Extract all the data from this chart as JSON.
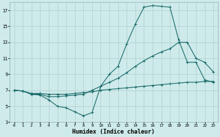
{
  "xlabel": "Humidex (Indice chaleur)",
  "bg_color": "#ceeaea",
  "line_color": "#1a6b6b",
  "grid_color": "#aed0d0",
  "xlim": [
    -0.5,
    23.5
  ],
  "ylim": [
    3,
    18
  ],
  "xticks": [
    0,
    1,
    2,
    3,
    4,
    5,
    6,
    7,
    8,
    9,
    10,
    11,
    12,
    13,
    14,
    15,
    16,
    17,
    18,
    19,
    20,
    21,
    22,
    23
  ],
  "yticks": [
    3,
    5,
    7,
    9,
    11,
    13,
    15,
    17
  ],
  "line1_x": [
    0,
    1,
    2,
    3,
    4,
    5,
    6,
    7,
    8,
    9,
    10,
    11,
    12,
    13,
    14,
    15,
    16,
    17,
    18,
    19,
    20,
    21,
    22,
    23
  ],
  "line1_y": [
    7.0,
    6.9,
    6.6,
    6.6,
    6.5,
    6.5,
    6.5,
    6.6,
    6.7,
    6.8,
    7.0,
    7.1,
    7.2,
    7.3,
    7.4,
    7.5,
    7.6,
    7.7,
    7.8,
    7.9,
    8.0,
    8.0,
    8.1,
    8.1
  ],
  "line2_x": [
    0,
    1,
    2,
    3,
    4,
    5,
    6,
    7,
    8,
    9,
    10,
    11,
    12,
    13,
    14,
    15,
    16,
    17,
    18,
    19,
    20,
    21,
    22,
    23
  ],
  "line2_y": [
    7.0,
    6.9,
    6.5,
    6.5,
    6.2,
    6.2,
    6.3,
    6.4,
    6.5,
    7.0,
    7.5,
    8.0,
    8.5,
    9.2,
    10.0,
    10.7,
    11.3,
    11.8,
    12.2,
    13.0,
    13.0,
    11.0,
    10.5,
    9.3
  ],
  "line3_x": [
    0,
    1,
    2,
    3,
    4,
    5,
    6,
    7,
    8,
    9,
    10,
    11,
    12,
    13,
    14,
    15,
    16,
    17,
    18,
    19,
    20,
    21,
    22,
    23
  ],
  "line3_y": [
    7.0,
    6.9,
    6.5,
    6.4,
    5.8,
    5.0,
    4.8,
    4.3,
    3.8,
    4.2,
    7.5,
    9.0,
    10.0,
    12.8,
    15.3,
    17.4,
    17.6,
    17.5,
    17.4,
    13.3,
    10.5,
    10.5,
    8.3,
    8.0
  ]
}
